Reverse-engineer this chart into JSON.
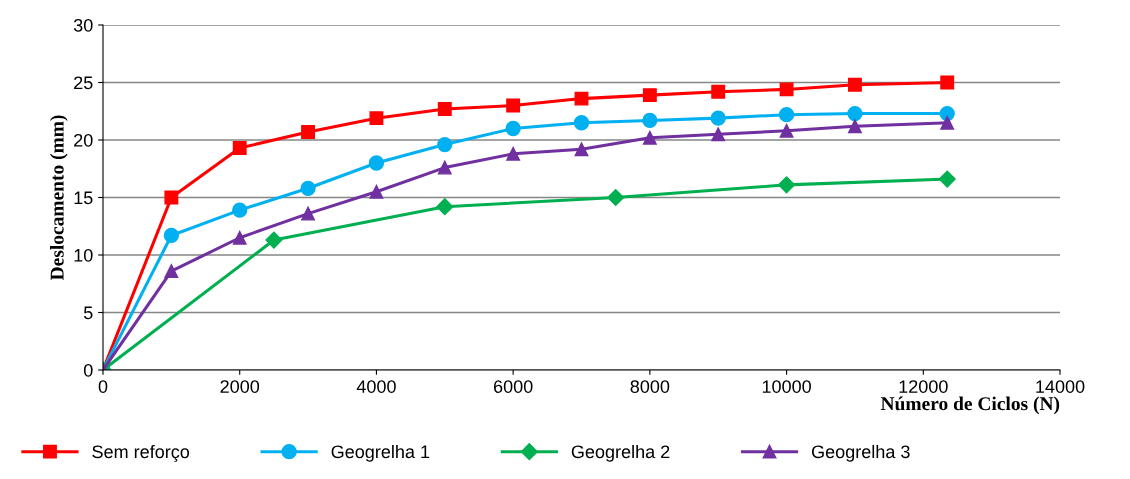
{
  "chart_data": {
    "type": "line",
    "xlabel": "Número de Ciclos (N)",
    "ylabel": "Deslocamento (mm)",
    "xlim": [
      0,
      14000
    ],
    "xticks": [
      0,
      2000,
      4000,
      6000,
      8000,
      10000,
      12000,
      14000
    ],
    "ylim": [
      0,
      30
    ],
    "yticks": [
      0,
      5,
      10,
      15,
      20,
      25,
      30
    ],
    "grid": "y",
    "legend": "bottom",
    "series": [
      {
        "name": "Sem reforço",
        "color": "#ff0000",
        "marker": "square",
        "x": [
          0,
          1000,
          2000,
          3000,
          4000,
          5000,
          6000,
          7000,
          8000,
          9000,
          10000,
          11000,
          12350
        ],
        "values": [
          0,
          15.0,
          19.3,
          20.7,
          21.9,
          22.7,
          23.0,
          23.6,
          23.9,
          24.2,
          24.4,
          24.8,
          25.0
        ]
      },
      {
        "name": "Geogrelha 1",
        "color": "#00b0f0",
        "marker": "circle",
        "x": [
          0,
          1000,
          2000,
          3000,
          4000,
          5000,
          6000,
          7000,
          8000,
          9000,
          10000,
          11000,
          12350
        ],
        "values": [
          0,
          11.7,
          13.9,
          15.8,
          18.0,
          19.6,
          21.0,
          21.5,
          21.7,
          21.9,
          22.2,
          22.3,
          22.3
        ]
      },
      {
        "name": "Geogrelha 2",
        "color": "#00b050",
        "marker": "diamond",
        "x": [
          0,
          2500,
          5000,
          7500,
          10000,
          12350
        ],
        "values": [
          0,
          11.3,
          14.2,
          15.0,
          16.1,
          16.6
        ]
      },
      {
        "name": "Geogrelha 3",
        "color": "#7030a0",
        "marker": "triangle",
        "x": [
          0,
          1000,
          2000,
          3000,
          4000,
          5000,
          6000,
          7000,
          8000,
          9000,
          10000,
          11000,
          12350
        ],
        "values": [
          0,
          8.6,
          11.5,
          13.6,
          15.5,
          17.6,
          18.8,
          19.2,
          20.2,
          20.5,
          20.8,
          21.2,
          21.5
        ]
      }
    ]
  }
}
